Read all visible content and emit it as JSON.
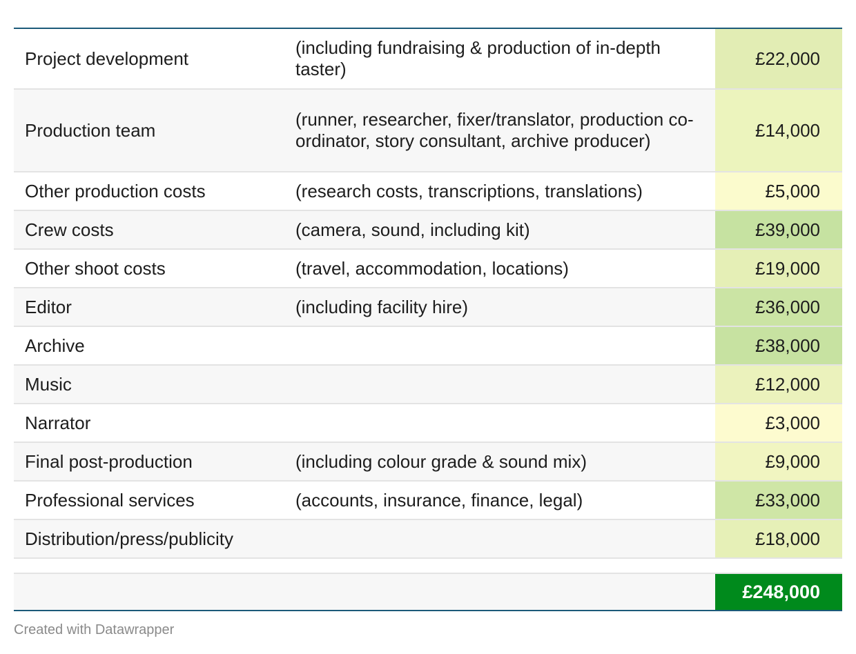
{
  "chart_data": {
    "type": "table",
    "columns": [
      "item",
      "details",
      "amount"
    ],
    "rows": [
      {
        "item": "Project development",
        "details": "(including fundraising & production of in-depth taster)",
        "amount": "£22,000",
        "value": 22000,
        "color": "#e2edb4"
      },
      {
        "item": "Production team",
        "details": "(runner, researcher, fixer/translator, production co-ordinator, story consultant, archive producer)",
        "amount": "£14,000",
        "value": 14000,
        "color": "#ecf4bd"
      },
      {
        "item": "Other production costs",
        "details": "(research costs, transcriptions, translations)",
        "amount": "£5,000",
        "value": 5000,
        "color": "#fbfbcd"
      },
      {
        "item": "Crew costs",
        "details": "(camera, sound, including kit)",
        "amount": "£39,000",
        "value": 39000,
        "color": "#c6e2a1"
      },
      {
        "item": "Other shoot costs",
        "details": "(travel, accommodation, locations)",
        "amount": "£19,000",
        "value": 19000,
        "color": "#e5efb6"
      },
      {
        "item": "Editor",
        "details": "(including facility hire)",
        "amount": "£36,000",
        "value": 36000,
        "color": "#cbe4a4"
      },
      {
        "item": "Archive",
        "details": "",
        "amount": "£38,000",
        "value": 38000,
        "color": "#c7e2a1"
      },
      {
        "item": "Music",
        "details": "",
        "amount": "£12,000",
        "value": 12000,
        "color": "#ebf2bc"
      },
      {
        "item": "Narrator",
        "details": "",
        "amount": "£3,000",
        "value": 3000,
        "color": "#fdfbcf"
      },
      {
        "item": "Final post-production",
        "details": "(including colour grade & sound mix)",
        "amount": "£9,000",
        "value": 9000,
        "color": "#f1f5c1"
      },
      {
        "item": "Professional services",
        "details": "(accounts, insurance, finance, legal)",
        "amount": "£33,000",
        "value": 33000,
        "color": "#cfe6a6"
      },
      {
        "item": "Distribution/press/publicity",
        "details": "",
        "amount": "£18,000",
        "value": 18000,
        "color": "#e6f0b7"
      }
    ],
    "total": {
      "amount": "£248,000",
      "value": 248000,
      "color": "#008a1c"
    }
  },
  "footer": {
    "credit": "Created with Datawrapper"
  },
  "colors": {
    "rule": "#1b5a79",
    "row_alt": "#f7f7f7",
    "total_bg": "#008a1c"
  }
}
